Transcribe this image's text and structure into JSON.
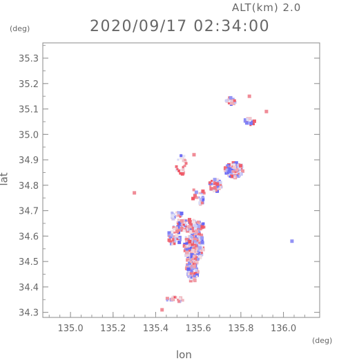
{
  "header": {
    "altitude_label": "ALT(km) 2.0",
    "timestamp": "2020/09/17 02:34:00"
  },
  "chart_data": {
    "type": "scatter",
    "title": "2020/09/17 02:34:00",
    "subtitle": "ALT(km) 2.0",
    "xlabel": "lon",
    "ylabel": "lat",
    "x_unit": "(deg)",
    "y_unit": "(deg)",
    "xlim": [
      134.87,
      136.17
    ],
    "ylim": [
      34.28,
      35.36
    ],
    "x_ticks": [
      "135.0",
      "135.2",
      "135.4",
      "135.6",
      "135.8",
      "136.0"
    ],
    "y_ticks": [
      "34.3",
      "34.4",
      "34.5",
      "34.6",
      "34.7",
      "34.8",
      "34.9",
      "35.0",
      "35.1",
      "35.2",
      "35.3"
    ],
    "grid": false,
    "colors": {
      "positive": "#e0505a",
      "negative": "#5a5ae6",
      "frame": "#888888"
    },
    "clusters": [
      {
        "lon": 135.58,
        "lat": 34.56,
        "dlon": 0.045,
        "dlat": 0.075,
        "n": 230
      },
      {
        "lon": 135.56,
        "lat": 34.64,
        "dlon": 0.07,
        "dlat": 0.025,
        "n": 120
      },
      {
        "lon": 135.57,
        "lat": 34.46,
        "dlon": 0.03,
        "dlat": 0.04,
        "n": 70
      },
      {
        "lon": 135.49,
        "lat": 34.6,
        "dlon": 0.03,
        "dlat": 0.04,
        "n": 40
      },
      {
        "lon": 135.77,
        "lat": 34.86,
        "dlon": 0.045,
        "dlat": 0.03,
        "n": 90
      },
      {
        "lon": 135.68,
        "lat": 34.8,
        "dlon": 0.03,
        "dlat": 0.025,
        "n": 40
      },
      {
        "lon": 135.52,
        "lat": 34.88,
        "dlon": 0.025,
        "dlat": 0.04,
        "n": 30
      },
      {
        "lon": 135.6,
        "lat": 34.76,
        "dlon": 0.03,
        "dlat": 0.04,
        "n": 25
      },
      {
        "lon": 135.75,
        "lat": 35.13,
        "dlon": 0.025,
        "dlat": 0.015,
        "n": 18
      },
      {
        "lon": 135.84,
        "lat": 35.05,
        "dlon": 0.03,
        "dlat": 0.015,
        "n": 15
      },
      {
        "lon": 135.49,
        "lat": 34.35,
        "dlon": 0.04,
        "dlat": 0.01,
        "n": 20
      },
      {
        "lon": 135.5,
        "lat": 34.68,
        "dlon": 0.03,
        "dlat": 0.02,
        "n": 20
      }
    ],
    "points": [
      {
        "lon": 135.3,
        "lat": 34.77,
        "v": 1
      },
      {
        "lon": 136.04,
        "lat": 34.58,
        "v": -1
      },
      {
        "lon": 135.92,
        "lat": 35.09,
        "v": 1
      },
      {
        "lon": 135.84,
        "lat": 35.15,
        "v": 1
      },
      {
        "lon": 135.43,
        "lat": 34.31,
        "v": 1
      },
      {
        "lon": 135.58,
        "lat": 34.92,
        "v": 1
      }
    ]
  }
}
